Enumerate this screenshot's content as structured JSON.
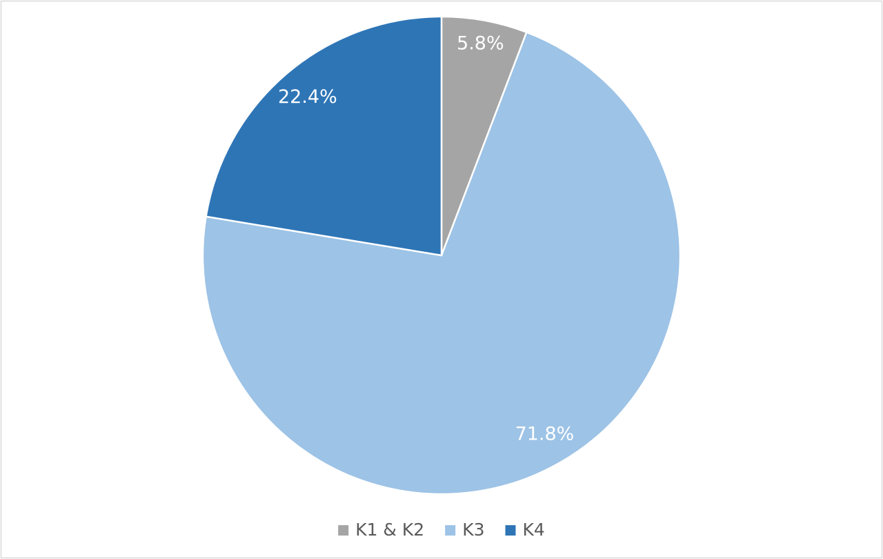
{
  "chart_data": {
    "type": "pie",
    "categories": [
      "K1 & K2",
      "K3",
      "K4"
    ],
    "values": [
      5.8,
      71.8,
      22.4
    ],
    "value_labels": [
      "5.8%",
      "71.8%",
      "22.4%"
    ],
    "colors": [
      "#a5a5a5",
      "#9dc3e6",
      "#2e75b6"
    ],
    "legend": "bottom"
  }
}
